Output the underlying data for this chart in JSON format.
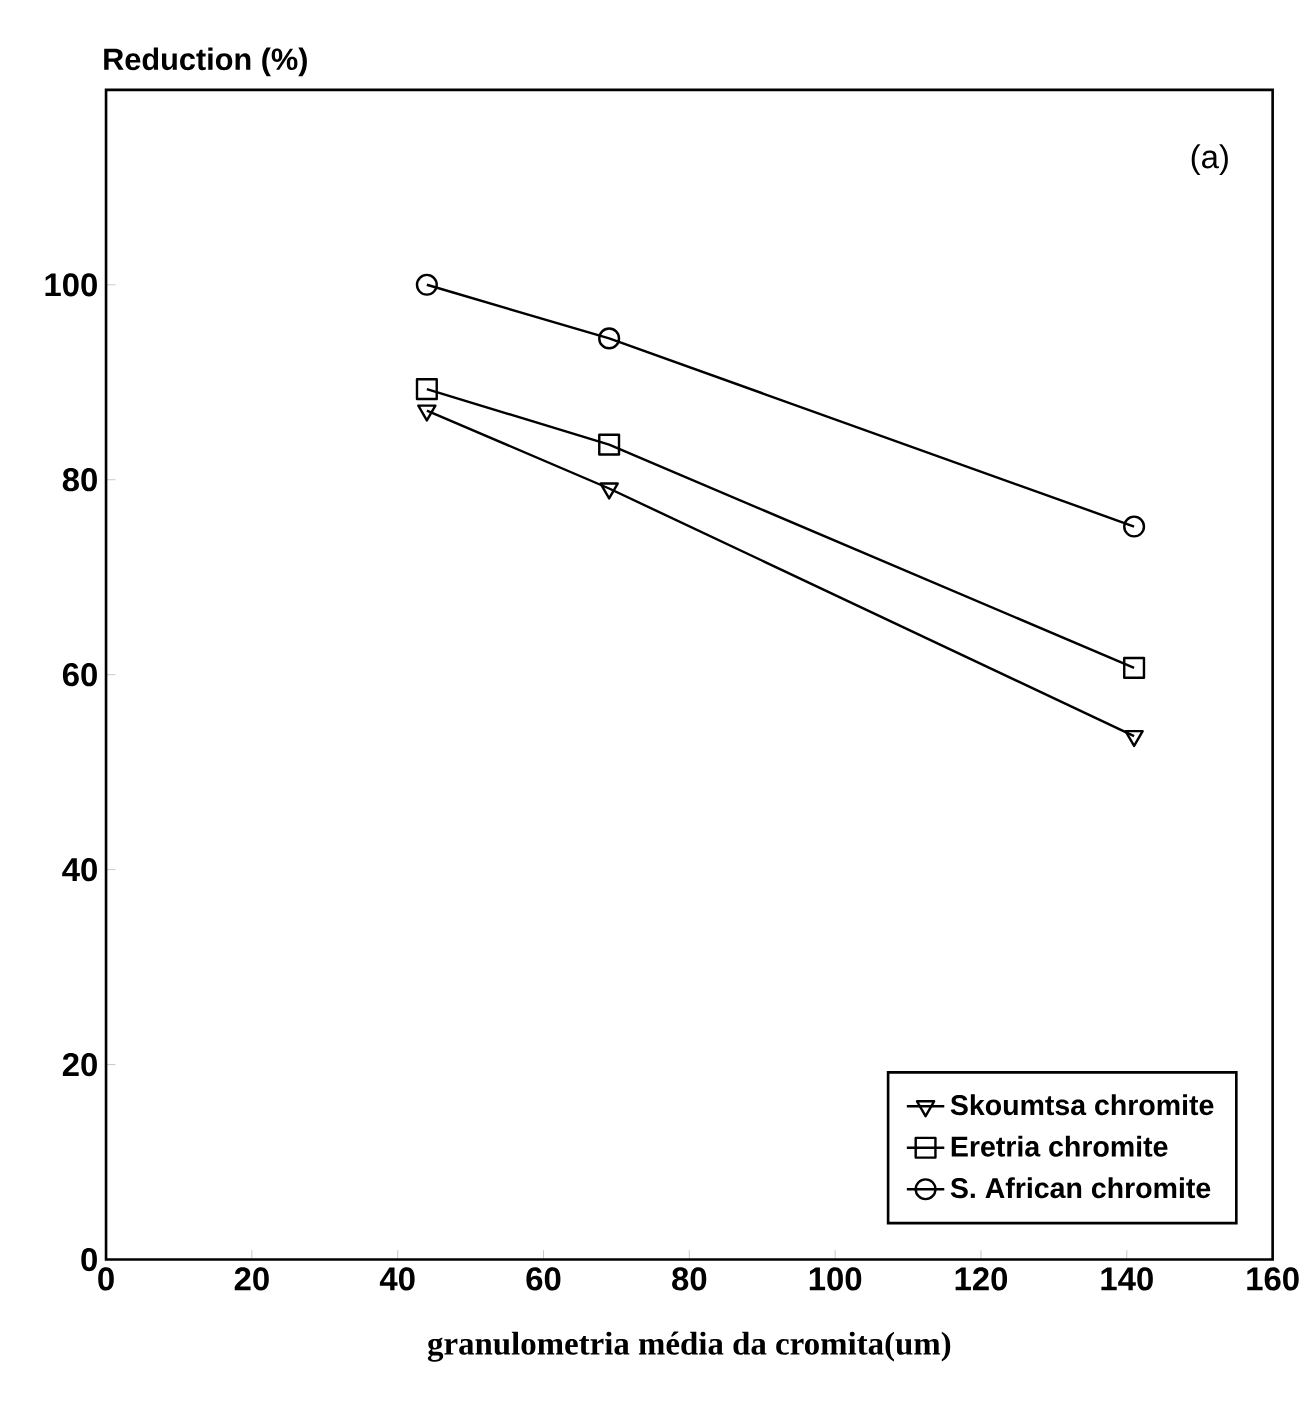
{
  "chart_data": {
    "type": "line",
    "ylabel": "Reduction (%)",
    "xlabel": "granulometria média da cromita(um)",
    "annotations": [
      "(a)"
    ],
    "x": [
      44,
      69,
      141
    ],
    "series": [
      {
        "name": "Skoumtsa chromite",
        "color": "#000000",
        "marker": "triangle",
        "values": [
          87.1,
          79.1,
          53.7
        ]
      },
      {
        "name": "Eretria chromite",
        "color": "#000000",
        "marker": "square",
        "values": [
          89.3,
          83.6,
          60.7
        ]
      },
      {
        "name": "S. African chromite",
        "color": "#000000",
        "marker": "circle",
        "values": [
          100,
          94.5,
          75.2
        ]
      }
    ],
    "xlim": [
      0,
      160
    ],
    "xticks": [
      0,
      20,
      40,
      60,
      80,
      100,
      120,
      140,
      160
    ],
    "ylim": [
      0,
      120
    ],
    "yticks": [
      0,
      20,
      40,
      60,
      80,
      100
    ],
    "grid": false,
    "legend": "bottom right",
    "line_style": "solid"
  }
}
